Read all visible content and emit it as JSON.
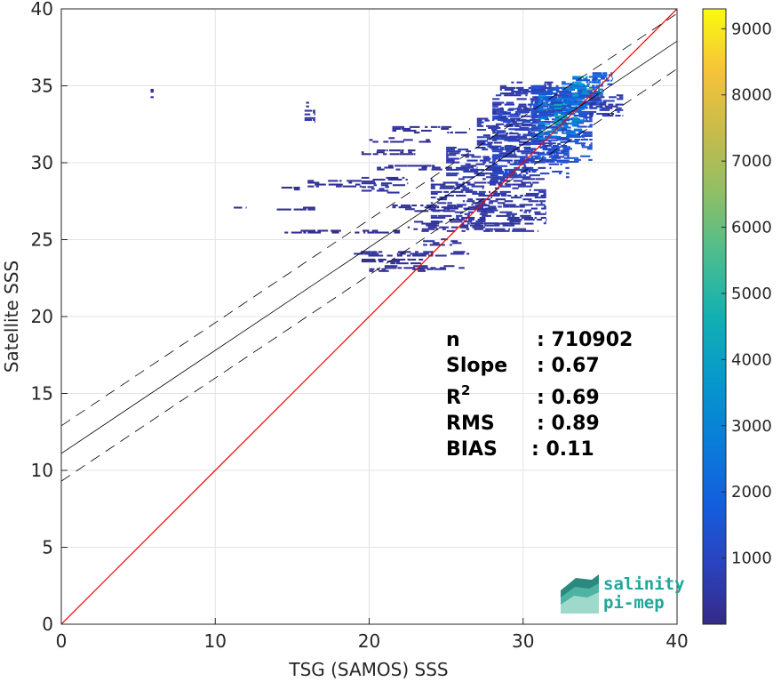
{
  "chart_data": {
    "type": "heatmap",
    "title": "",
    "xlabel": "TSG (SAMOS) SSS",
    "ylabel": "Satellite SSS",
    "xlim": [
      0,
      40
    ],
    "ylim": [
      0,
      40
    ],
    "xticks": [
      "0",
      "10",
      "20",
      "30",
      "40"
    ],
    "yticks": [
      "0",
      "5",
      "10",
      "15",
      "20",
      "25",
      "30",
      "35",
      "40"
    ],
    "grid": true,
    "colorbar": {
      "range": [
        0,
        9300
      ],
      "ticks": [
        "1000",
        "2000",
        "3000",
        "4000",
        "5000",
        "6000",
        "7000",
        "8000",
        "9000"
      ],
      "colormap": "parula"
    },
    "lines": [
      {
        "kind": "identity",
        "color": "#ff0000",
        "points": [
          [
            0,
            0
          ],
          [
            40,
            40
          ]
        ]
      },
      {
        "kind": "regression",
        "color": "#000000",
        "points": [
          [
            0,
            11.1
          ],
          [
            40,
            37.9
          ]
        ]
      },
      {
        "kind": "regression-plus-2rms",
        "color": "#000000",
        "style": "dashed",
        "points": [
          [
            0,
            12.9
          ],
          [
            40,
            39.7
          ]
        ]
      },
      {
        "kind": "regression-minus-2rms",
        "color": "#000000",
        "style": "dashed",
        "points": [
          [
            0,
            9.3
          ],
          [
            40,
            36.1
          ]
        ]
      }
    ],
    "density": [
      {
        "x": [
          5.8,
          6.0
        ],
        "y": [
          34.2,
          34.8
        ],
        "level": 0.03
      },
      {
        "x": [
          15.8,
          16.5
        ],
        "y": [
          32.6,
          33.4
        ],
        "level": 0.04
      },
      {
        "x": [
          15.9,
          16.1
        ],
        "y": [
          33.6,
          33.9
        ],
        "level": 0.03
      },
      {
        "x": [
          8.3,
          8.4
        ],
        "y": [
          26.9,
          27.1
        ],
        "level": 0.02
      },
      {
        "x": [
          10.5,
          12.0
        ],
        "y": [
          26.9,
          27.1
        ],
        "level": 0.02
      },
      {
        "x": [
          14.0,
          16.5
        ],
        "y": [
          26.9,
          27.1
        ],
        "level": 0.02
      },
      {
        "x": [
          14.3,
          15.5
        ],
        "y": [
          28.2,
          28.4
        ],
        "level": 0.02
      },
      {
        "x": [
          16.0,
          19.5
        ],
        "y": [
          28.4,
          28.8
        ],
        "level": 0.03
      },
      {
        "x": [
          19.5,
          22.5
        ],
        "y": [
          28.0,
          29.0
        ],
        "level": 0.04
      },
      {
        "x": [
          14.5,
          22.0
        ],
        "y": [
          25.4,
          25.6
        ],
        "level": 0.02
      },
      {
        "x": [
          19.0,
          26.5
        ],
        "y": [
          23.9,
          24.2
        ],
        "level": 0.03
      },
      {
        "x": [
          21.0,
          26.5
        ],
        "y": [
          23.1,
          23.3
        ],
        "level": 0.03
      },
      {
        "x": [
          20.0,
          25.0
        ],
        "y": [
          22.9,
          23.1
        ],
        "level": 0.02
      },
      {
        "x": [
          19.5,
          23.5
        ],
        "y": [
          23.4,
          23.7
        ],
        "level": 0.02
      },
      {
        "x": [
          19.5,
          23.0
        ],
        "y": [
          30.5,
          30.8
        ],
        "level": 0.02
      },
      {
        "x": [
          20.0,
          24.0
        ],
        "y": [
          31.3,
          31.6
        ],
        "level": 0.02
      },
      {
        "x": [
          21.5,
          26.5
        ],
        "y": [
          31.9,
          32.3
        ],
        "level": 0.03
      },
      {
        "x": [
          20.5,
          27.0
        ],
        "y": [
          29.5,
          29.8
        ],
        "level": 0.03
      },
      {
        "x": [
          21.5,
          28.0
        ],
        "y": [
          26.8,
          27.2
        ],
        "level": 0.03
      },
      {
        "x": [
          22.5,
          26.5
        ],
        "y": [
          25.5,
          26.2
        ],
        "level": 0.03
      },
      {
        "x": [
          23.5,
          26.0
        ],
        "y": [
          24.6,
          25.0
        ],
        "level": 0.03
      },
      {
        "x": [
          24.0,
          31.5
        ],
        "y": [
          26.0,
          29.0
        ],
        "level": 0.05
      },
      {
        "x": [
          25.0,
          30.5
        ],
        "y": [
          29.0,
          31.0
        ],
        "level": 0.06
      },
      {
        "x": [
          26.0,
          31.0
        ],
        "y": [
          25.5,
          26.0
        ],
        "level": 0.04
      },
      {
        "x": [
          27.0,
          30.5
        ],
        "y": [
          31.0,
          33.0
        ],
        "level": 0.06
      },
      {
        "x": [
          28.0,
          33.0
        ],
        "y": [
          29.0,
          33.5
        ],
        "level": 0.1
      },
      {
        "x": [
          28.0,
          33.0
        ],
        "y": [
          33.0,
          34.5
        ],
        "level": 0.07
      },
      {
        "x": [
          28.5,
          32.0
        ],
        "y": [
          34.2,
          35.2
        ],
        "level": 0.06
      },
      {
        "x": [
          30.5,
          34.5
        ],
        "y": [
          30.0,
          35.0
        ],
        "level": 0.14
      },
      {
        "x": [
          31.0,
          34.0
        ],
        "y": [
          31.5,
          34.5
        ],
        "level": 0.25
      },
      {
        "x": [
          32.0,
          33.5
        ],
        "y": [
          32.5,
          33.8
        ],
        "level": 0.36
      },
      {
        "x": [
          32.5,
          35.2
        ],
        "y": [
          33.5,
          35.4
        ],
        "level": 0.22
      },
      {
        "x": [
          33.2,
          35.0
        ],
        "y": [
          34.2,
          35.6
        ],
        "level": 0.32
      },
      {
        "x": [
          33.5,
          34.5
        ],
        "y": [
          34.6,
          35.2
        ],
        "level": 0.48
      },
      {
        "x": [
          34.5,
          35.8
        ],
        "y": [
          34.8,
          35.8
        ],
        "level": 0.18
      },
      {
        "x": [
          34.3,
          36.5
        ],
        "y": [
          33.0,
          34.5
        ],
        "level": 0.07
      }
    ]
  },
  "stats": [
    {
      "label": "n",
      "value": ": 710902"
    },
    {
      "label": "Slope",
      "value": ": 0.67"
    },
    {
      "label": "R",
      "sup": "2",
      "value": ": 0.69"
    },
    {
      "label": "RMS",
      "value": ": 0.89"
    },
    {
      "label": "BIAS",
      "value": ": 0.11"
    }
  ],
  "logo": {
    "line1": "salinity",
    "line2": "pi-mep"
  }
}
